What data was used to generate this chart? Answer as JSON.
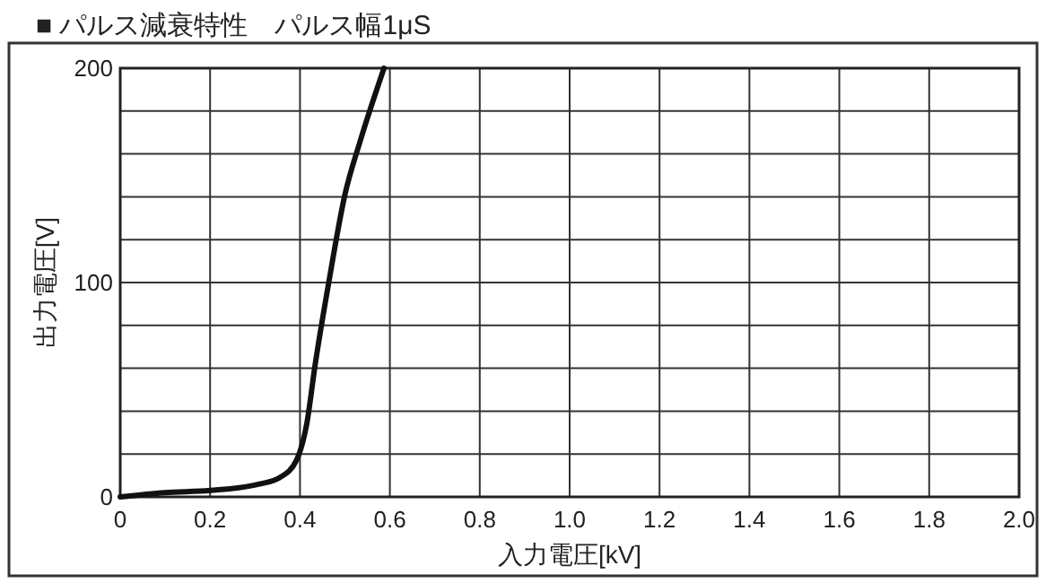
{
  "chart_data": {
    "type": "line",
    "title": "■ パルス減衰特性　パルス幅1μS",
    "xlabel": "入力電圧[kV]",
    "ylabel": "出力電圧[V]",
    "x": [
      0,
      0.1,
      0.2,
      0.31,
      0.355,
      0.392,
      0.415,
      0.434,
      0.464,
      0.5,
      0.534,
      0.587
    ],
    "series": [
      {
        "color": "#111111",
        "values": [
          0,
          2,
          3,
          6,
          9,
          17,
          34,
          62,
          100,
          141,
          166,
          200
        ]
      }
    ],
    "xlim": [
      0,
      2
    ],
    "xticks": [
      0,
      0.2,
      0.4,
      0.6,
      0.8,
      {
        "value": 1,
        "label": "1.0"
      },
      1.2,
      1.4,
      1.6,
      1.8,
      {
        "value": 2,
        "label": "2.0"
      }
    ],
    "ylim": [
      0,
      200
    ],
    "yticks": [
      0,
      {
        "value": 20,
        "label": null
      },
      {
        "value": 40,
        "label": null
      },
      {
        "value": 60,
        "label": null
      },
      {
        "value": 80,
        "label": null
      },
      100,
      {
        "value": 120,
        "label": null
      },
      {
        "value": 140,
        "label": null
      },
      {
        "value": 160,
        "label": null
      },
      {
        "value": 180,
        "label": null
      },
      200
    ],
    "grid": true,
    "marker": "none",
    "line_style": "solid"
  }
}
